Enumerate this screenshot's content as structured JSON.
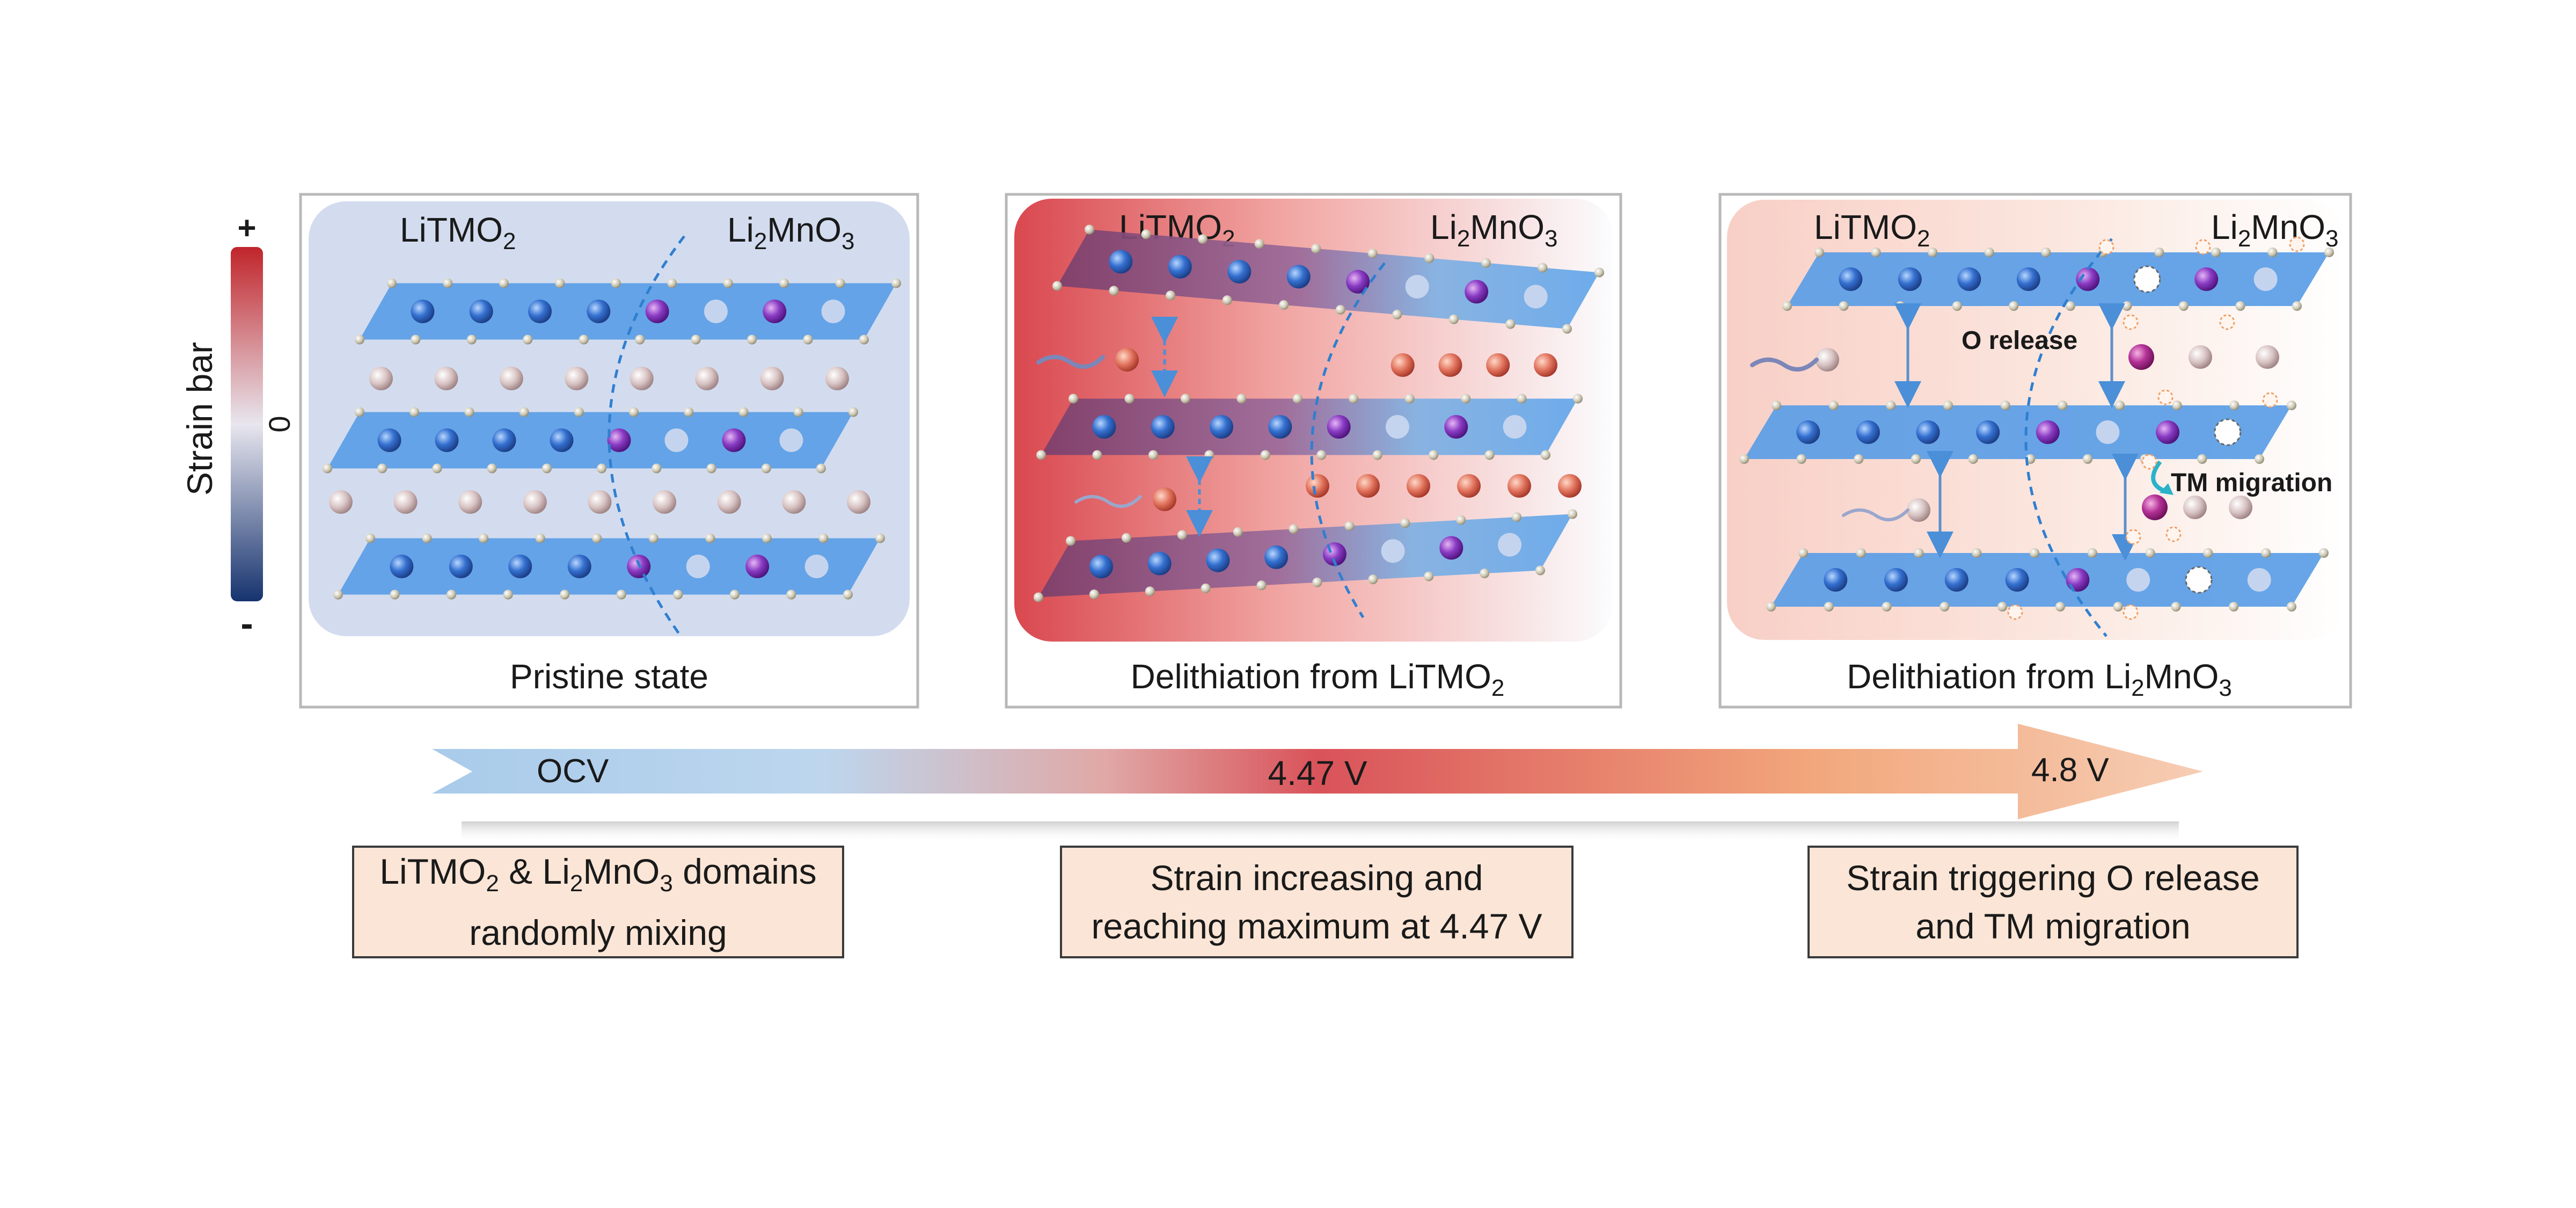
{
  "strain_bar": {
    "title": "Strain bar",
    "plus": "+",
    "zero": "0",
    "minus": "-",
    "colors": {
      "high": "#c0252a",
      "mid": "#e8e6ee",
      "low": "#16336e"
    }
  },
  "panels": [
    {
      "left_label": "LiTMO",
      "left_sub": "2",
      "right_label": "Li",
      "right_sub1": "2",
      "right_mid": "MnO",
      "right_sub2": "3",
      "caption": "Pristine state"
    },
    {
      "left_label": "LiTMO",
      "left_sub": "2",
      "right_label": "Li",
      "right_sub1": "2",
      "right_mid": "MnO",
      "right_sub2": "3",
      "caption_main": "Delithiation from LiTMO",
      "caption_sub": "2"
    },
    {
      "left_label": "LiTMO",
      "left_sub": "2",
      "right_label": "Li",
      "right_sub1": "2",
      "right_mid": "MnO",
      "right_sub2": "3",
      "caption_main": "Delithiation from Li",
      "caption_sub1": "2",
      "caption_mid": "MnO",
      "caption_sub2": "3",
      "annotation_o_release": "O release",
      "annotation_tm_migration": "TM migration"
    }
  ],
  "voltage_arrow": {
    "labels": [
      "OCV",
      "4.47 V",
      "4.8 V"
    ],
    "colors": {
      "start": "#a9cbea",
      "peak": "#d9535a",
      "end": "#f6cdb4"
    }
  },
  "descriptions": [
    {
      "line1_a": "LiTMO",
      "line1_sub1": "2",
      "line1_b": " & Li",
      "line1_sub2": "2",
      "line1_c": "MnO",
      "line1_sub3": "3",
      "line1_d": " domains",
      "line2": "randomly mixing"
    },
    {
      "line1": "Strain increasing and",
      "line2": "reaching maximum at 4.47 V"
    },
    {
      "line1": "Strain triggering O release",
      "line2": "and TM migration"
    }
  ]
}
